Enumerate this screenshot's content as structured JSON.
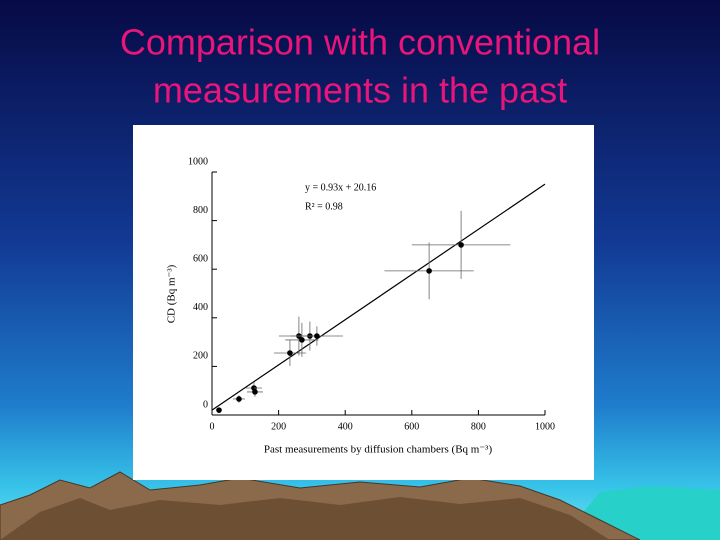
{
  "chart_data": {
    "type": "scatter",
    "title": [
      "Comparison with conventional",
      "measurements in the past"
    ],
    "xlabel": "Past measurements by diffusion chambers (Bq m⁻³)",
    "ylabel": "CD (Bq m⁻³)",
    "annotations": [
      "y = 0.93x + 20.16",
      "R² = 0.98"
    ],
    "fit": {
      "slope": 0.93,
      "intercept": 20.16
    },
    "x": [
      21,
      81,
      126,
      129,
      234,
      261,
      270,
      294,
      315,
      652,
      748
    ],
    "values": [
      20,
      66,
      111,
      95,
      255,
      325,
      309,
      325,
      325,
      593,
      700
    ],
    "x_error": [
      8,
      18,
      24,
      24,
      48,
      60,
      50,
      40,
      78,
      134,
      148
    ],
    "y_error": [
      8,
      15,
      25,
      20,
      53,
      80,
      70,
      60,
      40,
      117,
      140
    ],
    "color": "#000000",
    "xlim": [
      0,
      1000
    ],
    "ylim": [
      0,
      1000
    ],
    "xticks": [
      0,
      200,
      400,
      600,
      800,
      1000
    ],
    "yticks": [
      0,
      200,
      400,
      600,
      800,
      1000
    ]
  }
}
